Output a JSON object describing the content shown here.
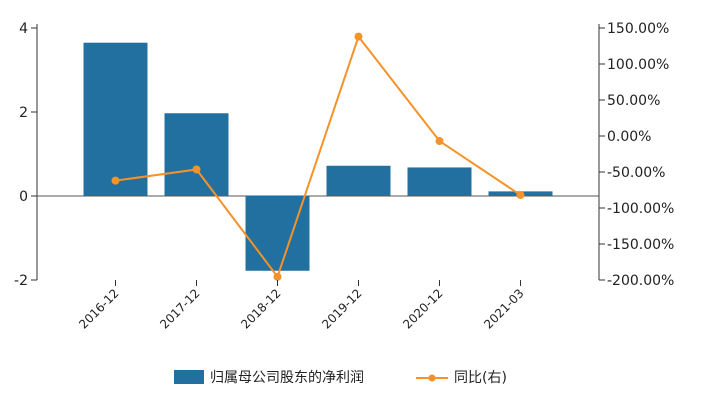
{
  "chart_data": {
    "type": "bar",
    "categories": [
      "2016-12",
      "2017-12",
      "2018-12",
      "2019-12",
      "2020-12",
      "2021-03"
    ],
    "series": [
      {
        "name": "归属母公司股东的净利润",
        "type": "bar",
        "axis": "left",
        "values": [
          3.65,
          1.97,
          -1.78,
          0.72,
          0.68,
          0.11
        ],
        "color": "#2170a0"
      },
      {
        "name": "同比(右)",
        "type": "line",
        "axis": "right",
        "values": [
          -62.0,
          -46.5,
          -195.5,
          138.0,
          -7.0,
          -82.0
        ],
        "color": "#f5922a"
      }
    ],
    "y_left": {
      "ylim": [
        -2,
        4
      ],
      "ticks": [
        -2,
        0,
        2,
        4
      ],
      "tick_labels": [
        "-2",
        "0",
        "2",
        "4"
      ]
    },
    "y_right": {
      "ylim": [
        -200,
        150
      ],
      "ticks": [
        150,
        100,
        50,
        0,
        -50,
        -100,
        -150,
        -200
      ],
      "tick_labels": [
        "150.00%",
        "100.00%",
        "50.00%",
        "0.00%",
        "-50.00%",
        "-100.00%",
        "-150.00%",
        "-200.00%"
      ]
    },
    "grid": false,
    "legend_position": "bottom-center"
  }
}
